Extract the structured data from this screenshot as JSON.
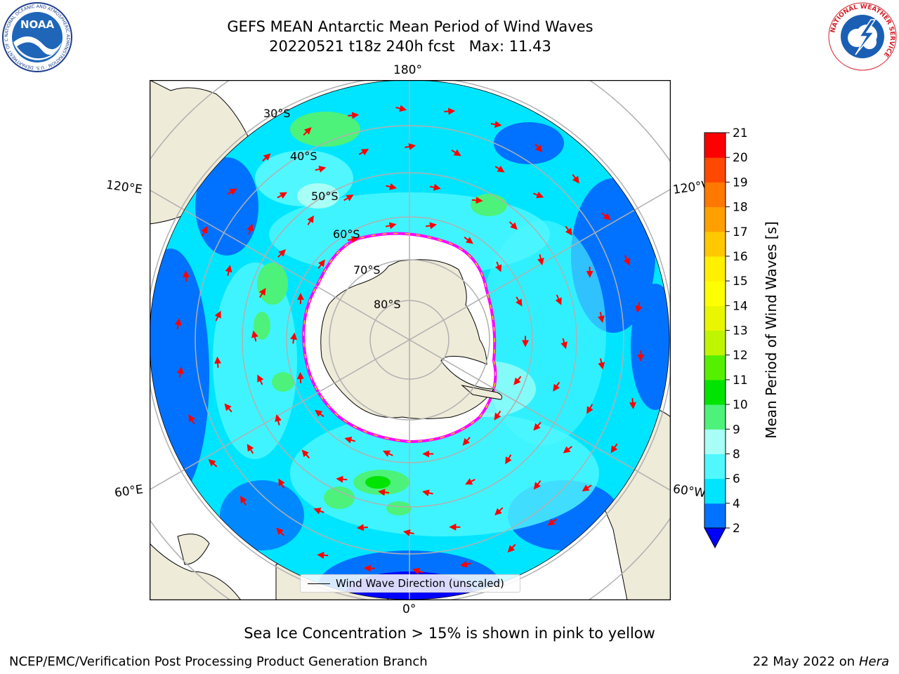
{
  "header": {
    "title_line1": "GEFS MEAN Antarctic Mean Period of Wind Waves",
    "title_line2": "20220521 t18z 240h fcst   Max: 11.43"
  },
  "map": {
    "projection": "south-polar-stereographic",
    "longitude_labels": {
      "top": "180°",
      "bottom": "0°",
      "left_upper": "120°E",
      "left_lower": "60°E",
      "right_upper": "120°W",
      "right_lower": "60°W"
    },
    "latitude_labels": [
      "30°S",
      "40°S",
      "50°S",
      "60°S",
      "70°S",
      "80°S"
    ],
    "colors": {
      "land": "#efebd9",
      "ocean_outside": "#ffffff",
      "sea_ice": "#ffffff",
      "sea_ice_edge": [
        "#ff00ff",
        "#ffd000"
      ],
      "arrows": "#ff0000",
      "grid": "#b0b0b0"
    },
    "legend": {
      "label": "Wind Wave Direction (unscaled)"
    }
  },
  "colorbar": {
    "label": "Mean Period of Wind Waves [s]",
    "ticks": [
      "2",
      "4",
      "6",
      "8",
      "9",
      "10",
      "11",
      "12",
      "13",
      "14",
      "15",
      "16",
      "17",
      "18",
      "19",
      "20",
      "21"
    ],
    "colors": [
      "#0072ff",
      "#00e5ff",
      "#50f7ff",
      "#a8fff6",
      "#4cf27a",
      "#00e400",
      "#55f000",
      "#c0f500",
      "#e8f700",
      "#ffff00",
      "#fff000",
      "#ffc800",
      "#ffa000",
      "#ff7800",
      "#ff4800",
      "#ff0000"
    ],
    "extend_below_color": "#0000ff"
  },
  "footer": {
    "subtitle": "Sea Ice Concentration > 15% is shown in pink to yellow",
    "left": "NCEP/EMC/Verification Post Processing Product Generation Branch",
    "right_date": "22 May 2022 on",
    "right_machine": "Hera"
  },
  "logos": {
    "noaa_text": "NOAA",
    "noaa_ring": "NATIONAL OCEANIC AND ATMOSPHERIC ADMINISTRATION · U.S. DEPARTMENT OF COMMERCE",
    "nws_ring": "NATIONAL WEATHER SERVICE"
  }
}
